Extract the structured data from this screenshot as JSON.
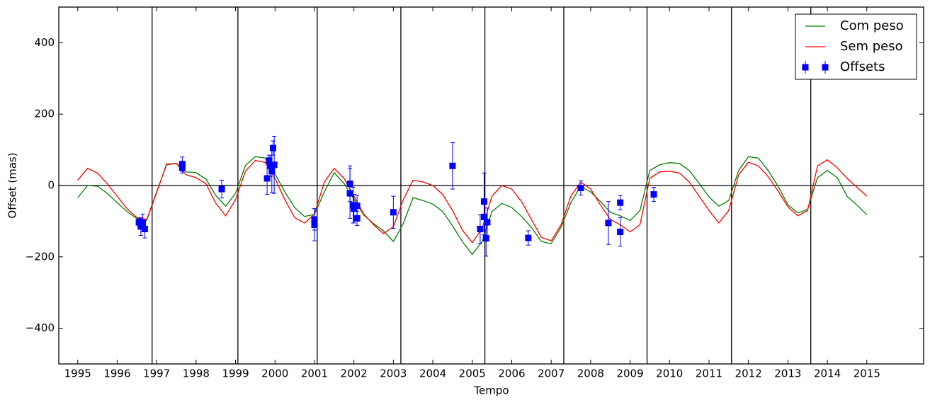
{
  "chart_data": {
    "type": "line",
    "xlabel": "Tempo",
    "ylabel": "Offset (mas)",
    "xlim": [
      1994.52,
      2016.44
    ],
    "ylim": [
      -500,
      500
    ],
    "xticks": [
      1995,
      1996,
      1997,
      1998,
      1999,
      2000,
      2001,
      2002,
      2003,
      2004,
      2005,
      2006,
      2007,
      2008,
      2009,
      2010,
      2011,
      2012,
      2013,
      2014,
      2015
    ],
    "yticks": [
      {
        "value": -400,
        "label": "−400"
      },
      {
        "value": -200,
        "label": "−200"
      },
      0,
      200,
      400
    ],
    "vlines": [
      1996.885,
      1999.06,
      2001.07,
      2003.19,
      2005.32,
      2007.32,
      2009.43,
      2011.57,
      2013.58
    ],
    "hline": 0,
    "legend": "upper right",
    "x": [
      1995,
      1995.25,
      1995.5,
      1995.75,
      1996,
      1996.25,
      1996.5,
      1996.75,
      1997,
      1997.25,
      1997.5,
      1997.75,
      1998,
      1998.25,
      1998.5,
      1998.75,
      1999,
      1999.25,
      1999.5,
      1999.75,
      2000,
      2000.25,
      2000.5,
      2000.75,
      2001,
      2001.25,
      2001.5,
      2001.75,
      2002,
      2002.25,
      2002.5,
      2002.75,
      2003,
      2003.25,
      2003.5,
      2003.75,
      2004,
      2004.25,
      2004.5,
      2004.75,
      2005,
      2005.25,
      2005.5,
      2005.75,
      2006,
      2006.25,
      2006.5,
      2006.75,
      2007,
      2007.25,
      2007.5,
      2007.75,
      2008,
      2008.25,
      2008.5,
      2008.75,
      2009,
      2009.25,
      2009.5,
      2009.75,
      2010,
      2010.25,
      2010.5,
      2010.75,
      2011,
      2011.25,
      2011.5,
      2011.75,
      2012,
      2012.25,
      2012.5,
      2012.75,
      2013,
      2013.25,
      2013.5,
      2013.75,
      2014,
      2014.25,
      2014.5,
      2014.75,
      2015
    ],
    "series": [
      {
        "name": "Com peso",
        "color": "#008000",
        "values": [
          -34,
          0,
          -2,
          -22,
          -48,
          -73,
          -93,
          -97,
          -18,
          58,
          62,
          38,
          36,
          18,
          -28,
          -58,
          -22,
          56,
          81,
          77,
          32,
          -18,
          -62,
          -87,
          -81,
          -18,
          36,
          6,
          -38,
          -83,
          -107,
          -127,
          -157,
          -107,
          -34,
          -42,
          -52,
          -73,
          -113,
          -157,
          -193,
          -157,
          -73,
          -50,
          -62,
          -87,
          -117,
          -157,
          -163,
          -117,
          -48,
          -2,
          -18,
          -45,
          -75,
          -85,
          -98,
          -70,
          42,
          58,
          64,
          62,
          42,
          6,
          -32,
          -58,
          -42,
          42,
          81,
          77,
          42,
          -2,
          -54,
          -77,
          -67,
          22,
          42,
          22,
          -30,
          -55,
          -82
        ]
      },
      {
        "name": "Sem peso",
        "color": "#ff0000",
        "values": [
          15,
          48,
          35,
          5,
          -30,
          -65,
          -90,
          -95,
          -20,
          60,
          62,
          30,
          22,
          5,
          -50,
          -85,
          -40,
          40,
          70,
          65,
          20,
          -40,
          -90,
          -105,
          -80,
          10,
          48,
          20,
          -30,
          -80,
          -110,
          -135,
          -115,
          -40,
          15,
          10,
          0,
          -25,
          -70,
          -125,
          -160,
          -120,
          -30,
          0,
          -10,
          -45,
          -95,
          -145,
          -155,
          -110,
          -30,
          10,
          -10,
          -55,
          -95,
          -110,
          -130,
          -110,
          20,
          38,
          40,
          35,
          10,
          -30,
          -70,
          -105,
          -70,
          30,
          65,
          55,
          25,
          -15,
          -60,
          -85,
          -70,
          55,
          72,
          50,
          20,
          -5,
          -30
        ]
      },
      {
        "name": "Offsets",
        "type": "errorbar",
        "color": "#0000ff",
        "x": [
          1996.55,
          1996.6,
          1996.65,
          1996.7,
          1997.65,
          1997.65,
          1998.65,
          1999.8,
          1999.85,
          1999.88,
          1999.92,
          1999.95,
          1999.98,
          2001.0,
          2001.0,
          2001.9,
          2001.9,
          2001.98,
          2002.0,
          2002.08,
          2002.08,
          2003.0,
          2004.5,
          2005.2,
          2005.3,
          2005.3,
          2005.35,
          2005.38,
          2006.42,
          2007.75,
          2008.45,
          2008.75,
          2008.75,
          2009.6
        ],
        "values": [
          -103,
          -115,
          -105,
          -122,
          60,
          50,
          -10,
          20,
          70,
          55,
          40,
          105,
          58,
          -95,
          -110,
          5,
          -22,
          -55,
          -65,
          -57,
          -92,
          -75,
          55,
          -122,
          -45,
          -88,
          -148,
          -103,
          -147,
          -7,
          -105,
          -130,
          -48,
          -25
        ],
        "errors": [
          10,
          25,
          25,
          25,
          20,
          15,
          25,
          45,
          15,
          30,
          60,
          20,
          80,
          30,
          45,
          50,
          70,
          50,
          40,
          30,
          20,
          45,
          65,
          40,
          80,
          50,
          50,
          40,
          20,
          20,
          60,
          40,
          20,
          20
        ]
      }
    ]
  }
}
